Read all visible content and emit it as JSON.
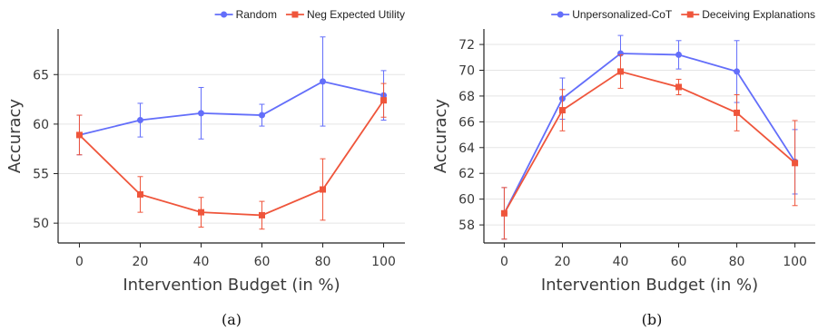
{
  "colors": {
    "series_a": "#636efa",
    "series_b": "#ef553b",
    "grid": "#e5e5e5",
    "axis": "#222222"
  },
  "chart_data": [
    {
      "type": "line",
      "caption": "(a)",
      "xlabel": "Intervention Budget (in %)",
      "ylabel": "Accuracy",
      "x": [
        0,
        20,
        40,
        60,
        80,
        100
      ],
      "xlim": [
        -7,
        107
      ],
      "ylim": [
        48,
        69.6
      ],
      "xticks": [
        0,
        20,
        40,
        60,
        80,
        100
      ],
      "yticks": [
        50,
        55,
        60,
        65
      ],
      "grid": true,
      "legend_position": "top-right",
      "series": [
        {
          "name": "Random",
          "color": "#636efa",
          "marker": "circle",
          "values": [
            58.9,
            60.4,
            61.1,
            60.9,
            64.3,
            62.9
          ],
          "errors": [
            2.0,
            1.7,
            2.6,
            1.1,
            4.5,
            2.5
          ]
        },
        {
          "name": "Neg Expected Utility",
          "color": "#ef553b",
          "marker": "square",
          "values": [
            58.9,
            52.9,
            51.1,
            50.8,
            53.4,
            62.4
          ],
          "errors": [
            2.0,
            1.8,
            1.5,
            1.4,
            3.1,
            1.7
          ]
        }
      ]
    },
    {
      "type": "line",
      "caption": "(b)",
      "xlabel": "Intervention Budget (in %)",
      "ylabel": "Accuracy",
      "x": [
        0,
        20,
        40,
        60,
        80,
        100
      ],
      "xlim": [
        -7,
        107
      ],
      "ylim": [
        56.6,
        73.2
      ],
      "xticks": [
        0,
        20,
        40,
        60,
        80,
        100
      ],
      "yticks": [
        58,
        60,
        62,
        64,
        66,
        68,
        70,
        72
      ],
      "grid": true,
      "legend_position": "top-right",
      "series": [
        {
          "name": "Unpersonalized-CoT",
          "color": "#636efa",
          "marker": "circle",
          "values": [
            58.9,
            67.8,
            71.3,
            71.2,
            69.9,
            62.9
          ],
          "errors": [
            2.0,
            1.6,
            1.4,
            1.1,
            2.4,
            2.5
          ]
        },
        {
          "name": "Deceiving Explanations",
          "color": "#ef553b",
          "marker": "square",
          "values": [
            58.9,
            66.9,
            69.9,
            68.7,
            66.7,
            62.8
          ],
          "errors": [
            2.0,
            1.6,
            1.3,
            0.6,
            1.4,
            3.3
          ]
        }
      ]
    }
  ]
}
